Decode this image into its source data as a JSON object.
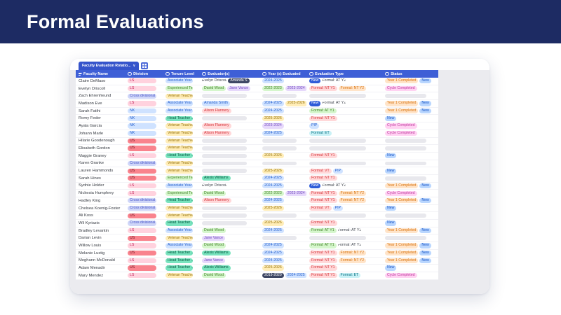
{
  "banner": {
    "title": "Formal Evaluations"
  },
  "tab": {
    "label": "Faculty Evaluation Rotatio...",
    "caret": "∨",
    "grid_icon": "grid-view-icon"
  },
  "columns": [
    {
      "label": "Faculty Name",
      "icon": "text-field-icon"
    },
    {
      "label": "Division",
      "icon": "select-icon"
    },
    {
      "label": "Tenure Level",
      "icon": "select-icon"
    },
    {
      "label": "Evaluator(s)",
      "icon": "select-icon"
    },
    {
      "label": "Year (s) Evaluated",
      "icon": "select-icon"
    },
    {
      "label": "Evaluation Type",
      "icon": "select-icon"
    },
    {
      "label": "Status",
      "icon": "select-icon"
    }
  ],
  "palette": {
    "pink": {
      "bg": "#ffd2de",
      "fg": "#c2255c"
    },
    "red": {
      "bg": "#f9838d",
      "fg": "#71121f"
    },
    "bluelight": {
      "bg": "#cfe2ff",
      "fg": "#2761ce"
    },
    "periwinkle": {
      "bg": "#cfd6f8",
      "fg": "#4553c8"
    },
    "greenlight": {
      "bg": "#d5f6cc",
      "fg": "#45842b"
    },
    "yellowlight": {
      "bg": "#ffedb8",
      "fg": "#96720a"
    },
    "mint": {
      "bg": "#79e3be",
      "fg": "#075c44"
    },
    "redlight": {
      "bg": "#ffd8d9",
      "fg": "#d6353b"
    },
    "purplelight": {
      "bg": "#e6d8fb",
      "fg": "#7149bf"
    },
    "orangelight": {
      "bg": "#ffe4c9",
      "fg": "#d9730d"
    },
    "cyanlight": {
      "bg": "#c9f1f6",
      "fg": "#0b7285"
    },
    "magentalight": {
      "bg": "#ffd2f2",
      "fg": "#c0379e"
    },
    "navy": {
      "bg": "#3d4663",
      "fg": "#ffffff"
    },
    "bluesolid": {
      "bg": "#2d5bd8",
      "fg": "#ffffff"
    },
    "bluemed": {
      "bg": "#b9d6fe",
      "fg": "#1a56c7"
    },
    "plain": {
      "bg": "",
      "fg": "#3f444d"
    }
  },
  "rows": [
    {
      "name": "Claire DeMaso",
      "division": {
        "t": "LS",
        "c": "pink"
      },
      "tenure": {
        "t": "Associate Year 2",
        "c": "bluelight"
      },
      "evaluators": [
        {
          "t": "Evelyn Driscoll",
          "c": "plain"
        },
        {
          "t": "Amanda S",
          "c": "navy"
        }
      ],
      "years": [
        {
          "t": "2024-2025",
          "c": "bluelight"
        }
      ],
      "types": [
        {
          "t": "New",
          "c": "bluesolid"
        },
        {
          "t": "Formal: AT Y2",
          "c": "plain"
        }
      ],
      "status": [
        {
          "t": "Year 1 Completed",
          "c": "orangelight"
        },
        {
          "t": "New",
          "c": "bluemed"
        }
      ]
    },
    {
      "name": "Evelyn Driscoll",
      "division": {
        "t": "LS",
        "c": "pink"
      },
      "tenure": {
        "t": "Experienced Te...",
        "c": "greenlight"
      },
      "evaluators": [
        {
          "t": "David Wood",
          "c": "greenlight"
        },
        {
          "t": "Jane Vance",
          "c": "purplelight"
        }
      ],
      "years": [
        {
          "t": "2022-2023",
          "c": "greenlight"
        },
        {
          "t": "2023-2024",
          "c": "purplelight"
        }
      ],
      "types": [
        {
          "t": "Formal: NT Y1",
          "c": "redlight"
        },
        {
          "t": "Formal: NT Y2",
          "c": "orangelight"
        }
      ],
      "status": [
        {
          "t": "Cycle Completed",
          "c": "magentalight"
        }
      ]
    },
    {
      "name": "Zach Ehrenfreund",
      "division": {
        "t": "Cross divisional",
        "c": "periwinkle"
      },
      "tenure": {
        "t": "Veteran Teacher",
        "c": "yellowlight"
      },
      "evaluators": [],
      "years": [],
      "types": [],
      "status": []
    },
    {
      "name": "Madison Eve",
      "division": {
        "t": "LS",
        "c": "pink"
      },
      "tenure": {
        "t": "Associate Year 2",
        "c": "bluelight"
      },
      "evaluators": [
        {
          "t": "Amanda Smith",
          "c": "bluelight"
        }
      ],
      "years": [
        {
          "t": "2024-2025",
          "c": "bluelight"
        },
        {
          "t": "2025-2026",
          "c": "yellowlight"
        }
      ],
      "types": [
        {
          "t": "New",
          "c": "bluesolid"
        },
        {
          "t": "Formal: AT Y2",
          "c": "plain"
        }
      ],
      "status": [
        {
          "t": "Year 1 Completed",
          "c": "orangelight"
        },
        {
          "t": "New",
          "c": "bluemed"
        }
      ]
    },
    {
      "name": "Sarah Fatihi",
      "division": {
        "t": "NK",
        "c": "bluelight"
      },
      "tenure": {
        "t": "Associate Year 2",
        "c": "bluelight"
      },
      "evaluators": [
        {
          "t": "Alison Flannery",
          "c": "redlight"
        }
      ],
      "years": [
        {
          "t": "2024-2025",
          "c": "bluelight"
        }
      ],
      "types": [
        {
          "t": "Formal: AT Y1",
          "c": "greenlight"
        }
      ],
      "status": [
        {
          "t": "Year 1 Completed",
          "c": "orangelight"
        },
        {
          "t": "New",
          "c": "bluemed"
        }
      ]
    },
    {
      "name": "Romy Feder",
      "division": {
        "t": "NK",
        "c": "bluelight"
      },
      "tenure": {
        "t": "Head Teacher ...",
        "c": "mint"
      },
      "evaluators": [],
      "years": [
        {
          "t": "2025-2026",
          "c": "yellowlight"
        }
      ],
      "types": [
        {
          "t": "Formal: NT Y1",
          "c": "redlight"
        }
      ],
      "status": [
        {
          "t": "New",
          "c": "bluemed"
        }
      ]
    },
    {
      "name": "Ayala Garcia",
      "division": {
        "t": "NK",
        "c": "bluelight"
      },
      "tenure": {
        "t": "Veteran Teacher",
        "c": "yellowlight"
      },
      "evaluators": [
        {
          "t": "Alison Flannery",
          "c": "redlight"
        }
      ],
      "years": [
        {
          "t": "2023-2024",
          "c": "purplelight"
        }
      ],
      "types": [
        {
          "t": "PIP",
          "c": "bluelight"
        }
      ],
      "status": [
        {
          "t": "Cycle Completed",
          "c": "magentalight"
        }
      ]
    },
    {
      "name": "Johann Marle",
      "division": {
        "t": "NK",
        "c": "bluelight"
      },
      "tenure": {
        "t": "Veteran Teacher",
        "c": "yellowlight"
      },
      "evaluators": [
        {
          "t": "Alison Flannery",
          "c": "redlight"
        }
      ],
      "years": [
        {
          "t": "2024-2025",
          "c": "bluelight"
        }
      ],
      "types": [
        {
          "t": "Formal: ET",
          "c": "cyanlight"
        }
      ],
      "status": [
        {
          "t": "Cycle Completed",
          "c": "magentalight"
        }
      ]
    },
    {
      "name": "Hilarie Goodenough",
      "division": {
        "t": "US",
        "c": "red"
      },
      "tenure": {
        "t": "Veteran Teacher",
        "c": "yellowlight"
      },
      "evaluators": [],
      "years": [],
      "types": [],
      "status": []
    },
    {
      "name": "Elisabeth Gordon",
      "division": {
        "t": "US",
        "c": "red"
      },
      "tenure": {
        "t": "Veteran Teacher",
        "c": "yellowlight"
      },
      "evaluators": [],
      "years": [],
      "types": [],
      "status": []
    },
    {
      "name": "Maggie Graney",
      "division": {
        "t": "LS",
        "c": "pink"
      },
      "tenure": {
        "t": "Head Teacher ...",
        "c": "mint"
      },
      "evaluators": [],
      "years": [
        {
          "t": "2025-2026",
          "c": "yellowlight"
        }
      ],
      "types": [
        {
          "t": "Formal: NT Y1",
          "c": "redlight"
        }
      ],
      "status": [
        {
          "t": "New",
          "c": "bluemed"
        }
      ]
    },
    {
      "name": "Karen Granke",
      "division": {
        "t": "Cross divisional",
        "c": "periwinkle"
      },
      "tenure": {
        "t": "Veteran Teacher",
        "c": "yellowlight"
      },
      "evaluators": [],
      "years": [],
      "types": [],
      "status": []
    },
    {
      "name": "Lauren Hammonds",
      "division": {
        "t": "US",
        "c": "red"
      },
      "tenure": {
        "t": "Veteran Teacher",
        "c": "yellowlight"
      },
      "evaluators": [],
      "years": [
        {
          "t": "2025-2026",
          "c": "yellowlight"
        }
      ],
      "types": [
        {
          "t": "Formal: VT",
          "c": "redlight"
        },
        {
          "t": "PIP",
          "c": "bluelight"
        }
      ],
      "status": [
        {
          "t": "New",
          "c": "bluemed"
        }
      ]
    },
    {
      "name": "Sarah Hines",
      "division": {
        "t": "US",
        "c": "red"
      },
      "tenure": {
        "t": "Experienced Te...",
        "c": "greenlight"
      },
      "evaluators": [
        {
          "t": "Alexis Williams",
          "c": "mint"
        }
      ],
      "years": [
        {
          "t": "2024-2025",
          "c": "bluelight"
        }
      ],
      "types": [
        {
          "t": "Formal: NT Y1",
          "c": "redlight"
        }
      ],
      "status": []
    },
    {
      "name": "Sydnie Holder",
      "division": {
        "t": "LS",
        "c": "pink"
      },
      "tenure": {
        "t": "Associate Year 3",
        "c": "bluelight"
      },
      "evaluators": [
        {
          "t": "Evelyn Driscoll",
          "c": "plain"
        }
      ],
      "years": [
        {
          "t": "2024-2025",
          "c": "bluelight"
        }
      ],
      "types": [
        {
          "t": "New",
          "c": "bluesolid"
        },
        {
          "t": "Formal: AT Y2",
          "c": "plain"
        }
      ],
      "status": [
        {
          "t": "Year 1 Completed",
          "c": "orangelight"
        },
        {
          "t": "New",
          "c": "bluemed"
        }
      ]
    },
    {
      "name": "Nickesia Humphrey",
      "division": {
        "t": "LS",
        "c": "pink"
      },
      "tenure": {
        "t": "Experienced Te...",
        "c": "greenlight"
      },
      "evaluators": [
        {
          "t": "David Wood",
          "c": "greenlight"
        }
      ],
      "years": [
        {
          "t": "2022-2023",
          "c": "greenlight"
        },
        {
          "t": "2023-2024",
          "c": "purplelight"
        }
      ],
      "types": [
        {
          "t": "Formal: NT Y1",
          "c": "redlight"
        },
        {
          "t": "Formal: NT Y2",
          "c": "orangelight"
        }
      ],
      "status": [
        {
          "t": "Cycle Completed",
          "c": "magentalight"
        }
      ]
    },
    {
      "name": "Hadley King",
      "division": {
        "t": "Cross divisional",
        "c": "periwinkle"
      },
      "tenure": {
        "t": "Head Teacher ...",
        "c": "mint"
      },
      "evaluators": [
        {
          "t": "Alison Flannery",
          "c": "redlight"
        }
      ],
      "years": [
        {
          "t": "2024-2025",
          "c": "bluelight"
        }
      ],
      "types": [
        {
          "t": "Formal: NT Y1",
          "c": "redlight"
        },
        {
          "t": "Formal: NT Y2",
          "c": "orangelight"
        }
      ],
      "status": [
        {
          "t": "Year 1 Completed",
          "c": "orangelight"
        },
        {
          "t": "New",
          "c": "bluemed"
        }
      ]
    },
    {
      "name": "Chelsea Koenig-Foster",
      "division": {
        "t": "Cross divisional",
        "c": "periwinkle"
      },
      "tenure": {
        "t": "Veteran Teacher",
        "c": "yellowlight"
      },
      "evaluators": [],
      "years": [
        {
          "t": "2025-2026",
          "c": "yellowlight"
        }
      ],
      "types": [
        {
          "t": "Formal: VT",
          "c": "redlight"
        },
        {
          "t": "PIP",
          "c": "bluelight"
        }
      ],
      "status": [
        {
          "t": "New",
          "c": "bluemed"
        }
      ]
    },
    {
      "name": "Ali Koss",
      "division": {
        "t": "US",
        "c": "red"
      },
      "tenure": {
        "t": "Veteran Teacher",
        "c": "yellowlight"
      },
      "evaluators": [],
      "years": [],
      "types": [],
      "status": []
    },
    {
      "name": "Wil Kyriazis",
      "division": {
        "t": "Cross divisional",
        "c": "periwinkle"
      },
      "tenure": {
        "t": "Head Teacher ...",
        "c": "mint"
      },
      "evaluators": [],
      "years": [
        {
          "t": "2025-2026",
          "c": "yellowlight"
        }
      ],
      "types": [
        {
          "t": "Formal: NT Y1",
          "c": "redlight"
        }
      ],
      "status": [
        {
          "t": "New",
          "c": "bluemed"
        }
      ]
    },
    {
      "name": "Bradley Levantin",
      "division": {
        "t": "LS",
        "c": "pink"
      },
      "tenure": {
        "t": "Associate Year 2",
        "c": "bluelight"
      },
      "evaluators": [
        {
          "t": "David Wood",
          "c": "greenlight"
        }
      ],
      "years": [
        {
          "t": "2024-2025",
          "c": "bluelight"
        }
      ],
      "types": [
        {
          "t": "Formal: AT Y1",
          "c": "greenlight"
        },
        {
          "t": "Formal: AT Y2",
          "c": "plain"
        }
      ],
      "status": [
        {
          "t": "Year 1 Completed",
          "c": "orangelight"
        },
        {
          "t": "New",
          "c": "bluemed"
        }
      ]
    },
    {
      "name": "Darian Levin",
      "division": {
        "t": "US",
        "c": "red"
      },
      "tenure": {
        "t": "Veteran Teacher",
        "c": "yellowlight"
      },
      "evaluators": [
        {
          "t": "Jane Vance",
          "c": "purplelight"
        }
      ],
      "years": [],
      "types": [],
      "status": []
    },
    {
      "name": "Willow Louis",
      "division": {
        "t": "LS",
        "c": "pink"
      },
      "tenure": {
        "t": "Associate Year 2",
        "c": "bluelight"
      },
      "evaluators": [
        {
          "t": "David Wood",
          "c": "greenlight"
        }
      ],
      "years": [
        {
          "t": "2024-2025",
          "c": "bluelight"
        }
      ],
      "types": [
        {
          "t": "Formal: AT Y1",
          "c": "greenlight"
        },
        {
          "t": "Formal: AT Y2",
          "c": "plain"
        }
      ],
      "status": [
        {
          "t": "Year 1 Completed",
          "c": "orangelight"
        },
        {
          "t": "New",
          "c": "bluemed"
        }
      ]
    },
    {
      "name": "Melanie Lustig",
      "division": {
        "t": "US",
        "c": "red"
      },
      "tenure": {
        "t": "Head Teacher ...",
        "c": "mint"
      },
      "evaluators": [
        {
          "t": "Alexis Williams",
          "c": "mint"
        }
      ],
      "years": [
        {
          "t": "2024-2025",
          "c": "bluelight"
        }
      ],
      "types": [
        {
          "t": "Formal: NT Y1",
          "c": "redlight"
        },
        {
          "t": "Formal: NT Y2",
          "c": "orangelight"
        }
      ],
      "status": [
        {
          "t": "Year 1 Completed",
          "c": "orangelight"
        },
        {
          "t": "New",
          "c": "bluemed"
        }
      ]
    },
    {
      "name": "Meghann McDonald",
      "division": {
        "t": "LS",
        "c": "pink"
      },
      "tenure": {
        "t": "Head Teacher ...",
        "c": "mint"
      },
      "evaluators": [
        {
          "t": "Jane Vance",
          "c": "purplelight"
        }
      ],
      "years": [
        {
          "t": "2024-2025",
          "c": "bluelight"
        }
      ],
      "types": [
        {
          "t": "Formal: NT Y1",
          "c": "redlight"
        },
        {
          "t": "Formal: NT Y2",
          "c": "orangelight"
        }
      ],
      "status": [
        {
          "t": "Year 1 Completed",
          "c": "orangelight"
        },
        {
          "t": "New",
          "c": "bluemed"
        }
      ]
    },
    {
      "name": "Adam Menadir",
      "division": {
        "t": "US",
        "c": "red"
      },
      "tenure": {
        "t": "Head Teacher ...",
        "c": "mint"
      },
      "evaluators": [
        {
          "t": "Alexis Williams",
          "c": "mint"
        }
      ],
      "years": [
        {
          "t": "2025-2026",
          "c": "yellowlight"
        }
      ],
      "types": [
        {
          "t": "Formal: NT Y1",
          "c": "redlight"
        }
      ],
      "status": [
        {
          "t": "New",
          "c": "bluemed"
        }
      ]
    },
    {
      "name": "Mary Mendez",
      "division": {
        "t": "LS",
        "c": "pink"
      },
      "tenure": {
        "t": "Veteran Teacher",
        "c": "yellowlight"
      },
      "evaluators": [
        {
          "t": "David Wood",
          "c": "greenlight"
        }
      ],
      "years": [
        {
          "t": "2019-2020",
          "c": "navy"
        },
        {
          "t": "2024-2025",
          "c": "bluelight"
        }
      ],
      "types": [
        {
          "t": "Formal: NT Y1",
          "c": "redlight"
        },
        {
          "t": "Formal: ET",
          "c": "cyanlight"
        }
      ],
      "status": [
        {
          "t": "Cycle Completed",
          "c": "magentalight"
        }
      ]
    }
  ]
}
